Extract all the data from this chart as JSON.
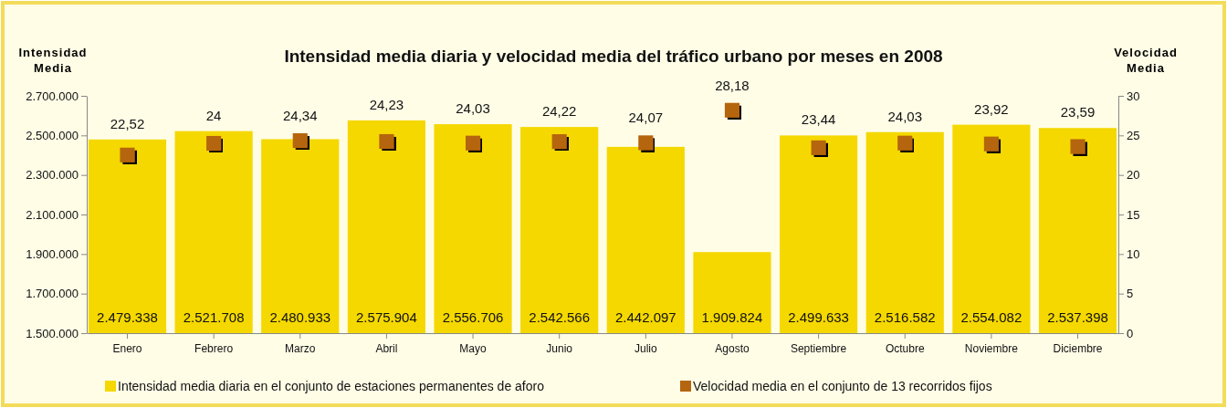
{
  "chart_data": {
    "type": "bar",
    "title": "Intensidad media diaria y velocidad media del tráfico urbano por meses en 2008",
    "ylabel": "Intensidad Media",
    "y2label": "Velocidad Media",
    "categories": [
      "Enero",
      "Febrero",
      "Marzo",
      "Abril",
      "Mayo",
      "Junio",
      "Julio",
      "Agosto",
      "Septiembre",
      "Octubre",
      "Noviembre",
      "Diciembre"
    ],
    "series": [
      {
        "name": "Intensidad media diaria en el conjunto de estaciones permanentes de aforo",
        "color": "#f5d800",
        "values": [
          2479338,
          2521708,
          2480933,
          2575904,
          2556706,
          2542566,
          2442097,
          1909824,
          2499633,
          2516582,
          2554082,
          2537398
        ],
        "value_labels": [
          "2.479.338",
          "2.521.708",
          "2.480.933",
          "2.575.904",
          "2.556.706",
          "2.542.566",
          "2.442.097",
          "1.909.824",
          "2.499.633",
          "2.516.582",
          "2.554.082",
          "2.537.398"
        ]
      },
      {
        "name": "Velocidad media en el conjunto de 13 recorridos fijos",
        "type": "scatter",
        "axis": "y2",
        "marker": "square",
        "color": "#b5650f",
        "values": [
          22.52,
          24,
          24.34,
          24.23,
          24.03,
          24.22,
          24.07,
          28.18,
          23.44,
          24.03,
          23.92,
          23.59
        ],
        "value_labels": [
          "22,52",
          "24",
          "24,34",
          "24,23",
          "24,03",
          "24,22",
          "24,07",
          "28,18",
          "23,44",
          "24,03",
          "23,92",
          "23,59"
        ]
      }
    ],
    "ylim": [
      1500000,
      2700000
    ],
    "yticks": [
      {
        "value": 1500000,
        "label": "1.500.000"
      },
      {
        "value": 1700000,
        "label": "1.700.000"
      },
      {
        "value": 1900000,
        "label": "1.900.000"
      },
      {
        "value": 2100000,
        "label": "2.100.000"
      },
      {
        "value": 2300000,
        "label": "2.300.000"
      },
      {
        "value": 2500000,
        "label": "2.500.000"
      },
      {
        "value": 2700000,
        "label": "2.700.000"
      }
    ],
    "y2lim": [
      0,
      30
    ],
    "y2ticks": [
      0,
      5,
      10,
      15,
      20,
      25,
      30
    ],
    "legend": "bottom",
    "grid": false
  }
}
